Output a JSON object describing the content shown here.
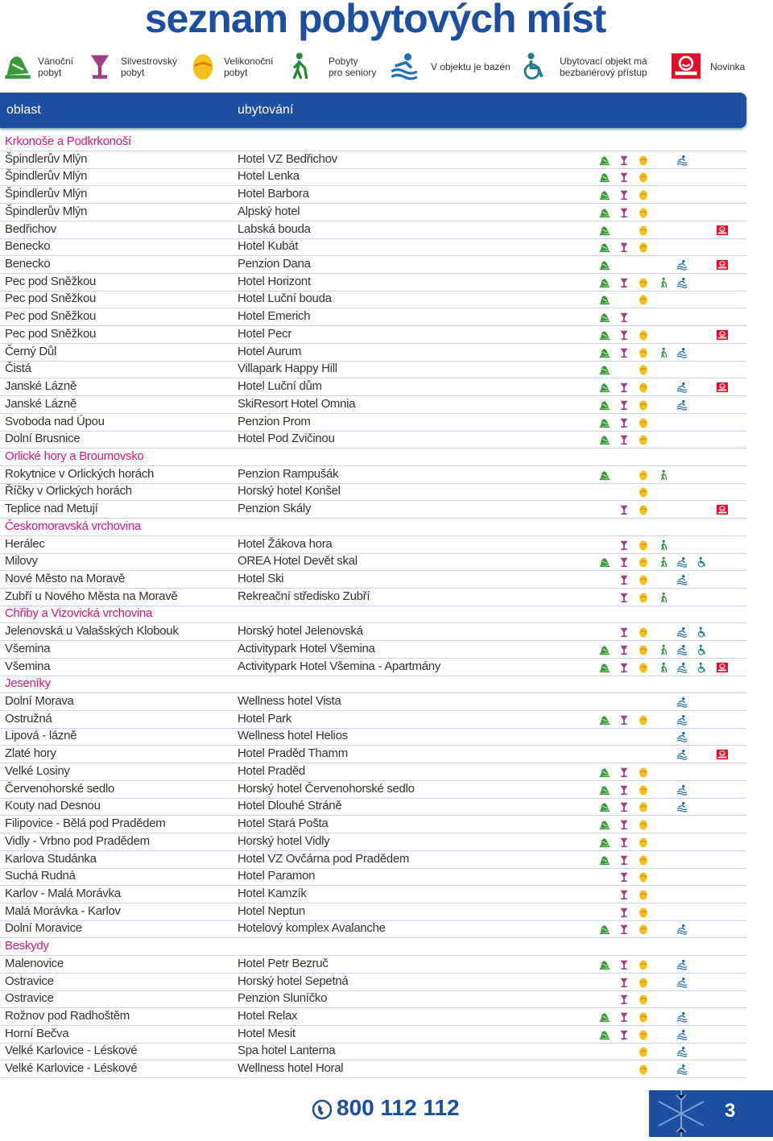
{
  "header": {
    "title": "seznam pobytových míst"
  },
  "legend": [
    {
      "label": [
        "Vánoční",
        "pobyt"
      ]
    },
    {
      "label": [
        "Silvestrovský",
        "pobyt"
      ]
    },
    {
      "label": [
        "Velikonoční",
        "pobyt"
      ]
    },
    {
      "label": [
        "Pobyty",
        "pro seniory"
      ]
    },
    {
      "label": [
        "V objektu je bazén"
      ]
    },
    {
      "label": [
        "Ubytovací objekt má",
        "bezbariérový přístup"
      ]
    },
    {
      "label": [
        "Novinka"
      ]
    }
  ],
  "table": {
    "columns": [
      "oblast",
      "ubytování"
    ],
    "sections": [
      {
        "name": "Krkonoše a Podkrkonoší",
        "rows": [
          {
            "place": "Špindlerův Mlýn",
            "hotel": "Hotel VZ Bedřichov",
            "icons": [
              true,
              true,
              true,
              false,
              true,
              false,
              false
            ]
          },
          {
            "place": "Špindlerův Mlýn",
            "hotel": "Hotel Lenka",
            "icons": [
              true,
              true,
              true,
              false,
              false,
              false,
              false
            ]
          },
          {
            "place": "Špindlerův Mlýn",
            "hotel": "Hotel Barbora",
            "icons": [
              true,
              true,
              true,
              false,
              false,
              false,
              false
            ]
          },
          {
            "place": "Špindlerův Mlýn",
            "hotel": "Alpský hotel",
            "icons": [
              true,
              true,
              true,
              false,
              false,
              false,
              false
            ]
          },
          {
            "place": "Bedřichov",
            "hotel": "Labská bouda",
            "icons": [
              true,
              false,
              true,
              false,
              false,
              false,
              true
            ]
          },
          {
            "place": "Benecko",
            "hotel": "Hotel Kubát",
            "icons": [
              true,
              true,
              true,
              false,
              false,
              false,
              false
            ]
          },
          {
            "place": "Benecko",
            "hotel": "Penzion Dana",
            "icons": [
              true,
              false,
              false,
              false,
              true,
              false,
              true
            ]
          },
          {
            "place": "Pec pod Sněžkou",
            "hotel": "Hotel Horizont",
            "icons": [
              true,
              true,
              true,
              true,
              true,
              false,
              false
            ]
          },
          {
            "place": "Pec pod Sněžkou",
            "hotel": "Hotel Luční bouda",
            "icons": [
              true,
              false,
              true,
              false,
              false,
              false,
              false
            ]
          },
          {
            "place": "Pec pod Sněžkou",
            "hotel": "Hotel Emerich",
            "icons": [
              true,
              true,
              false,
              false,
              false,
              false,
              false
            ]
          },
          {
            "place": "Pec pod Sněžkou",
            "hotel": "Hotel Pecr",
            "icons": [
              true,
              true,
              true,
              false,
              false,
              false,
              true
            ]
          },
          {
            "place": "Černý Důl",
            "hotel": "Hotel Aurum",
            "icons": [
              true,
              true,
              true,
              true,
              true,
              false,
              false
            ]
          },
          {
            "place": "Čistá",
            "hotel": "Villapark Happy Hill",
            "icons": [
              true,
              false,
              true,
              false,
              false,
              false,
              false
            ]
          },
          {
            "place": "Janské Lázně",
            "hotel": "Hotel Luční dům",
            "icons": [
              true,
              true,
              true,
              false,
              true,
              false,
              true
            ]
          },
          {
            "place": "Janské Lázně",
            "hotel": "SkiResort Hotel Omnia",
            "icons": [
              true,
              true,
              true,
              false,
              true,
              false,
              false
            ]
          },
          {
            "place": "Svoboda nad Úpou",
            "hotel": "Penzion Prom",
            "icons": [
              true,
              true,
              true,
              false,
              false,
              false,
              false
            ]
          },
          {
            "place": "Dolní Brusnice",
            "hotel": "Hotel Pod Zvičinou",
            "icons": [
              true,
              true,
              true,
              false,
              false,
              false,
              false
            ]
          }
        ]
      },
      {
        "name": "Orlické hory a Broumovsko",
        "rows": [
          {
            "place": "Rokytnice v Orlických horách",
            "hotel": "Penzion Rampušák",
            "icons": [
              true,
              false,
              true,
              true,
              false,
              false,
              false
            ]
          },
          {
            "place": "Říčky v Orlických horách",
            "hotel": "Horský hotel Konšel",
            "icons": [
              false,
              false,
              true,
              false,
              false,
              false,
              false
            ]
          },
          {
            "place": "Teplice nad Metují",
            "hotel": "Penzion Skály",
            "icons": [
              false,
              true,
              true,
              false,
              false,
              false,
              true
            ]
          }
        ]
      },
      {
        "name": "Českomoravská vrchovina",
        "rows": [
          {
            "place": "Herálec",
            "hotel": "Hotel Žákova hora",
            "icons": [
              false,
              true,
              true,
              true,
              false,
              false,
              false
            ]
          },
          {
            "place": "Milovy",
            "hotel": "OREA Hotel Devět skal",
            "icons": [
              true,
              true,
              true,
              true,
              true,
              true,
              false
            ]
          },
          {
            "place": "Nové Město na Moravě",
            "hotel": "Hotel Ski",
            "icons": [
              false,
              true,
              true,
              false,
              true,
              false,
              false
            ]
          },
          {
            "place": "Zubří u Nového Města na Moravě",
            "hotel": "Rekreační středisko Zubří",
            "icons": [
              false,
              true,
              true,
              true,
              false,
              false,
              false
            ]
          }
        ]
      },
      {
        "name": "Chřiby a Vizovická vrchovina",
        "rows": [
          {
            "place": "Jelenovská u Valašských Klobouk",
            "hotel": "Horský hotel Jelenovská",
            "icons": [
              false,
              true,
              true,
              false,
              true,
              true,
              false
            ]
          },
          {
            "place": "Všemina",
            "hotel": "Activitypark Hotel Všemina",
            "icons": [
              true,
              true,
              true,
              true,
              true,
              true,
              false
            ]
          },
          {
            "place": "Všemina",
            "hotel": "Activitypark Hotel Všemina - Apartmány",
            "icons": [
              true,
              true,
              true,
              true,
              true,
              true,
              true
            ]
          }
        ]
      },
      {
        "name": "Jeseníky",
        "rows": [
          {
            "place": "Dolní Morava",
            "hotel": "Wellness hotel Vista",
            "icons": [
              false,
              false,
              false,
              false,
              true,
              false,
              false
            ]
          },
          {
            "place": "Ostružná",
            "hotel": "Hotel Park",
            "icons": [
              true,
              true,
              true,
              false,
              true,
              false,
              false
            ]
          },
          {
            "place": "Lipová - lázně",
            "hotel": "Wellness hotel Helios",
            "icons": [
              false,
              false,
              false,
              false,
              true,
              false,
              false
            ]
          },
          {
            "place": "Zlaté hory",
            "hotel": "Hotel Praděd Thamm",
            "icons": [
              false,
              false,
              false,
              false,
              true,
              false,
              true
            ]
          },
          {
            "place": "Velké Losiny",
            "hotel": "Hotel Praděd",
            "icons": [
              true,
              true,
              true,
              false,
              false,
              false,
              false
            ]
          },
          {
            "place": "Červenohorské sedlo",
            "hotel": "Horský hotel Červenohorské sedlo",
            "icons": [
              true,
              true,
              true,
              false,
              true,
              false,
              false
            ]
          },
          {
            "place": "Kouty nad Desnou",
            "hotel": "Hotel Dlouhé Stráně",
            "icons": [
              true,
              true,
              true,
              false,
              true,
              false,
              false
            ]
          },
          {
            "place": "Filipovice - Bělá pod Pradědem",
            "hotel": "Hotel Stará Pošta",
            "icons": [
              true,
              true,
              true,
              false,
              false,
              false,
              false
            ]
          },
          {
            "place": "Vidly - Vrbno pod Pradědem",
            "hotel": "Horský hotel Vidly",
            "icons": [
              true,
              true,
              true,
              false,
              false,
              false,
              false
            ]
          },
          {
            "place": "Karlova Studánka",
            "hotel": "Hotel VZ Ovčárna pod Pradědem",
            "icons": [
              true,
              true,
              true,
              false,
              false,
              false,
              false
            ]
          },
          {
            "place": "Suchá Rudná",
            "hotel": "Hotel Paramon",
            "icons": [
              false,
              true,
              true,
              false,
              false,
              false,
              false
            ]
          },
          {
            "place": "Karlov - Malá Morávka",
            "hotel": "Hotel Kamzík",
            "icons": [
              false,
              true,
              true,
              false,
              false,
              false,
              false
            ]
          },
          {
            "place": "Malá Morávka - Karlov",
            "hotel": "Hotel Neptun",
            "icons": [
              false,
              true,
              true,
              false,
              false,
              false,
              false
            ]
          },
          {
            "place": "Dolní Moravice",
            "hotel": "Hotelový komplex Avalanche",
            "icons": [
              true,
              true,
              true,
              false,
              true,
              false,
              false
            ]
          }
        ]
      },
      {
        "name": "Beskydy",
        "rows": [
          {
            "place": "Malenovice",
            "hotel": "Hotel Petr Bezruč",
            "icons": [
              true,
              true,
              true,
              false,
              true,
              false,
              false
            ]
          },
          {
            "place": "Ostravice",
            "hotel": "Horský hotel Sepetná",
            "icons": [
              false,
              true,
              true,
              false,
              true,
              false,
              false
            ]
          },
          {
            "place": "Ostravice",
            "hotel": "Penzion Sluníčko",
            "icons": [
              false,
              true,
              true,
              false,
              false,
              false,
              false
            ]
          },
          {
            "place": "Rožnov pod Radhoštěm",
            "hotel": "Hotel Relax",
            "icons": [
              true,
              true,
              true,
              false,
              true,
              false,
              false
            ]
          },
          {
            "place": "Horní Bečva",
            "hotel": "Hotel Mesit",
            "icons": [
              true,
              true,
              true,
              false,
              true,
              false,
              false
            ]
          },
          {
            "place": "Velké Karlovice - Léskové",
            "hotel": "Spa hotel Lanterna",
            "icons": [
              false,
              false,
              true,
              false,
              true,
              false,
              false
            ]
          },
          {
            "place": "Velké Karlovice - Léskové",
            "hotel": "Wellness hotel Horal",
            "icons": [
              false,
              false,
              true,
              false,
              true,
              false,
              false
            ]
          }
        ]
      }
    ]
  },
  "footer": {
    "phone": "800 112 112",
    "page": "3"
  }
}
